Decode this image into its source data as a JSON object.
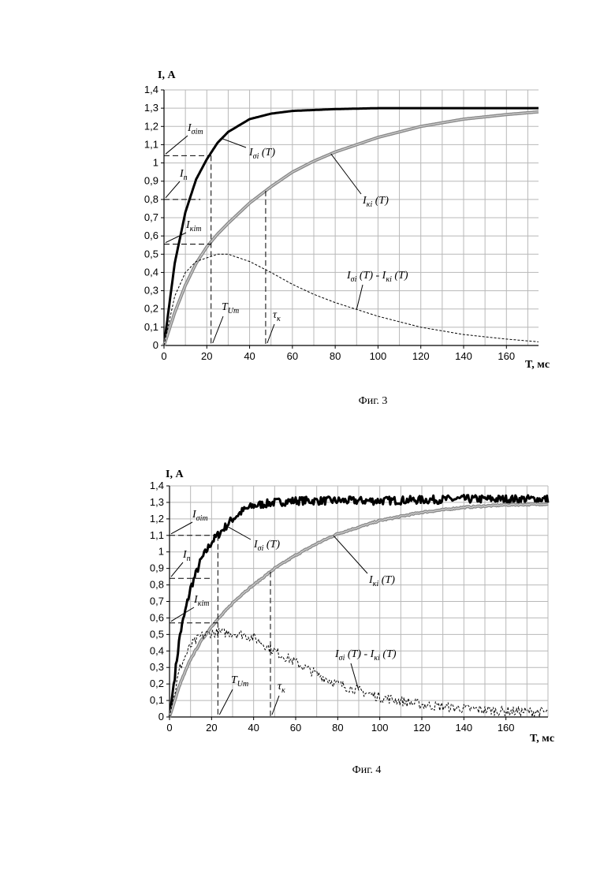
{
  "chart_data": [
    {
      "type": "line",
      "caption": "Фиг. 3",
      "ylabel": "I, А",
      "xlabel": "T, мс",
      "xlim": [
        0,
        175
      ],
      "ylim": [
        0,
        1.4
      ],
      "x_ticks": [
        "0",
        "20",
        "40",
        "60",
        "80",
        "100",
        "120",
        "140",
        "160"
      ],
      "y_ticks": [
        "0",
        "0,1",
        "0,2",
        "0,3",
        "0,4",
        "0,5",
        "0,6",
        "0,7",
        "0,8",
        "0,9",
        "1",
        "1,1",
        "1,2",
        "1,3",
        "1,4"
      ],
      "grid": true,
      "x": [
        0,
        5,
        10,
        15,
        20,
        25,
        30,
        40,
        50,
        60,
        70,
        80,
        100,
        120,
        140,
        160,
        175
      ],
      "series": [
        {
          "name": "Iσi (T)",
          "color": "#000000",
          "values": [
            0,
            0.45,
            0.73,
            0.91,
            1.02,
            1.11,
            1.17,
            1.24,
            1.27,
            1.285,
            1.29,
            1.295,
            1.3,
            1.3,
            1.3,
            1.3,
            1.3
          ]
        },
        {
          "name": "Iκi (T)",
          "color": "#888888",
          "values": [
            0,
            0.18,
            0.33,
            0.45,
            0.54,
            0.61,
            0.67,
            0.78,
            0.87,
            0.95,
            1.01,
            1.06,
            1.14,
            1.2,
            1.24,
            1.265,
            1.28
          ]
        },
        {
          "name": "Iσi (T) - Iκi (T)",
          "color": "#000000",
          "dashed": true,
          "values": [
            0,
            0.27,
            0.4,
            0.46,
            0.48,
            0.5,
            0.5,
            0.46,
            0.4,
            0.335,
            0.28,
            0.235,
            0.16,
            0.1,
            0.06,
            0.035,
            0.02
          ]
        }
      ],
      "annotations": {
        "i_sim": {
          "base": "I",
          "sub": "σim",
          "value": 1.04
        },
        "i_n": {
          "base": "I",
          "sub": "n",
          "value": 0.8
        },
        "i_kim": {
          "base": "I",
          "sub": "κim",
          "value": 0.555
        },
        "t_um": {
          "base": "T",
          "sub": "Um",
          "value": 22
        },
        "tau_k": {
          "base": "τ",
          "sub": "κ",
          "value": 47.5
        },
        "curve_s": {
          "base": "I",
          "sub": "σi",
          "rest": " (T)"
        },
        "curve_k": {
          "base": "I",
          "sub": "κi",
          "rest": " (T)"
        },
        "curve_d_a": {
          "base": "I",
          "sub": "σi",
          "rest": " (T) - "
        },
        "curve_d_b": {
          "base": "I",
          "sub": "κi",
          "rest": " (T)"
        }
      }
    },
    {
      "type": "line",
      "caption": "Фиг. 4",
      "ylabel": "I, А",
      "xlabel": "T, мс",
      "xlim": [
        0,
        180
      ],
      "ylim": [
        0,
        1.4
      ],
      "x_ticks": [
        "0",
        "20",
        "40",
        "60",
        "80",
        "100",
        "120",
        "140",
        "160"
      ],
      "y_ticks": [
        "0",
        "0,1",
        "0,2",
        "0,3",
        "0,4",
        "0,5",
        "0,6",
        "0,7",
        "0,8",
        "0,9",
        "1",
        "1,1",
        "1,2",
        "1,3",
        "1,4"
      ],
      "grid": true,
      "noisy": true,
      "x": [
        0,
        5,
        10,
        15,
        20,
        25,
        30,
        35,
        40,
        50,
        60,
        70,
        80,
        100,
        120,
        140,
        160,
        180
      ],
      "series": [
        {
          "name": "Iσi (T)",
          "color": "#000000",
          "values": [
            0,
            0.5,
            0.78,
            0.95,
            1.06,
            1.13,
            1.2,
            1.25,
            1.28,
            1.3,
            1.31,
            1.31,
            1.31,
            1.31,
            1.315,
            1.32,
            1.32,
            1.32
          ]
        },
        {
          "name": "Iκi (T)",
          "color": "#888888",
          "values": [
            0,
            0.2,
            0.35,
            0.46,
            0.55,
            0.62,
            0.69,
            0.75,
            0.8,
            0.9,
            0.98,
            1.05,
            1.11,
            1.19,
            1.24,
            1.27,
            1.285,
            1.29
          ]
        },
        {
          "name": "Iσi (T) - Iκi (T)",
          "color": "#000000",
          "dashed": true,
          "values": [
            0,
            0.3,
            0.43,
            0.49,
            0.51,
            0.51,
            0.51,
            0.5,
            0.48,
            0.4,
            0.33,
            0.26,
            0.2,
            0.12,
            0.075,
            0.05,
            0.035,
            0.03
          ]
        }
      ],
      "annotations": {
        "i_sim": {
          "base": "I",
          "sub": "σim",
          "value": 1.1
        },
        "i_n": {
          "base": "I",
          "sub": "n",
          "value": 0.84
        },
        "i_kim": {
          "base": "I",
          "sub": "κim",
          "value": 0.57
        },
        "t_um": {
          "base": "T",
          "sub": "Um",
          "value": 23
        },
        "tau_k": {
          "base": "τ",
          "sub": "κ",
          "value": 48
        },
        "curve_s": {
          "base": "I",
          "sub": "σi",
          "rest": " (T)"
        },
        "curve_k": {
          "base": "I",
          "sub": "κi",
          "rest": " (T)"
        },
        "curve_d_a": {
          "base": "I",
          "sub": "σi",
          "rest": " (T) - "
        },
        "curve_d_b": {
          "base": "I",
          "sub": "κi",
          "rest": " (T)"
        }
      }
    }
  ]
}
